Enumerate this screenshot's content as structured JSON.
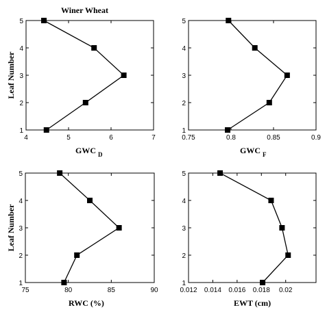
{
  "chart_data": [
    {
      "type": "line",
      "title": "Winer Wheat",
      "xlabel": "GWC",
      "xlabel_sub": "D",
      "ylabel": "Leaf Number",
      "xlim": [
        4,
        7
      ],
      "ylim": [
        1,
        5
      ],
      "xticks": [
        4,
        5,
        6,
        7
      ],
      "xtick_labels": [
        "4",
        "5",
        "6",
        "7"
      ],
      "yticks": [
        1,
        2,
        3,
        4,
        5
      ],
      "series": [
        {
          "x": [
            4.48,
            5.4,
            6.3,
            5.6,
            4.42
          ],
          "y": [
            1,
            2,
            3,
            4,
            5
          ]
        }
      ]
    },
    {
      "type": "line",
      "title": "",
      "xlabel": "GWC",
      "xlabel_sub": "F",
      "ylabel": "",
      "xlim": [
        0.75,
        0.9
      ],
      "ylim": [
        1,
        5
      ],
      "xticks": [
        0.75,
        0.8,
        0.85,
        0.9
      ],
      "xtick_labels": [
        "0.75",
        "0.8",
        "0.85",
        "0.9"
      ],
      "yticks": [
        1,
        2,
        3,
        4,
        5
      ],
      "series": [
        {
          "x": [
            0.796,
            0.845,
            0.866,
            0.828,
            0.797
          ],
          "y": [
            1,
            2,
            3,
            4,
            5
          ]
        }
      ]
    },
    {
      "type": "line",
      "title": "",
      "xlabel": "RWC (%)",
      "xlabel_sub": "",
      "ylabel": "Leaf Number",
      "xlim": [
        75,
        90
      ],
      "ylim": [
        1,
        5
      ],
      "xticks": [
        75,
        80,
        85,
        90
      ],
      "xtick_labels": [
        "75",
        "80",
        "85",
        "90"
      ],
      "yticks": [
        1,
        2,
        3,
        4,
        5
      ],
      "series": [
        {
          "x": [
            79.5,
            81,
            85.9,
            82.5,
            79
          ],
          "y": [
            1,
            2,
            3,
            4,
            5
          ]
        }
      ]
    },
    {
      "type": "line",
      "title": "",
      "xlabel": "EWT (cm)",
      "xlabel_sub": "",
      "ylabel": "",
      "xlim": [
        0.012,
        0.0225
      ],
      "ylim": [
        1,
        5
      ],
      "xticks": [
        0.012,
        0.014,
        0.016,
        0.018,
        0.02
      ],
      "xtick_labels": [
        "0.012",
        "0.014",
        "0.016",
        "0.018",
        "0.02"
      ],
      "yticks": [
        1,
        2,
        3,
        4,
        5
      ],
      "series": [
        {
          "x": [
            0.0181,
            0.0202,
            0.0197,
            0.0188,
            0.0146
          ],
          "y": [
            1,
            2,
            3,
            4,
            5
          ]
        }
      ]
    }
  ]
}
